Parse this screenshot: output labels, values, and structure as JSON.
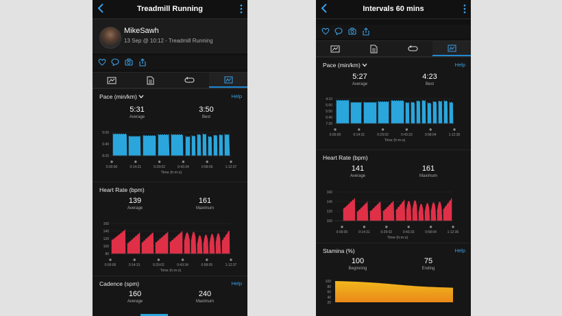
{
  "colors": {
    "pace": "#2aa6dd",
    "heart_rate": "#e03048",
    "stamina_top": "#f2b81d",
    "stamina_bottom": "#e9891a",
    "accent": "#1e8ad2"
  },
  "icons": [
    "back-chevron-icon",
    "more-vertical-icon",
    "heart-icon",
    "comment-icon",
    "camera-icon",
    "share-icon",
    "map-tab-icon",
    "details-tab-icon",
    "laps-tab-icon",
    "charts-tab-icon",
    "chevron-down-icon"
  ],
  "left": {
    "title": "Treadmill Running",
    "user": {
      "name": "MikeSawh",
      "subtitle": "13 Sep @ 10:12 - Treadmill Running"
    },
    "pace": {
      "label": "Pace (min/km)",
      "help": "Help",
      "avg": "5:31",
      "avg_label": "Average",
      "best": "3:50",
      "best_label": "Best",
      "yticks": [
        "5:00",
        "6:40",
        "8:20"
      ],
      "xticks": [
        "0:00:00",
        "0:14:31",
        "0:29:02",
        "0:43:34",
        "0:58:05",
        "1:12:37"
      ],
      "xlabel": "Time (h:m:s)"
    },
    "hr": {
      "label": "Heart Rate (bpm)",
      "avg": "139",
      "avg_label": "Average",
      "max": "161",
      "max_label": "Maximum",
      "yticks": [
        "160",
        "140",
        "120",
        "100",
        "80"
      ],
      "xticks": [
        "0:00:00",
        "0:14:31",
        "0:29:02",
        "0:43:34",
        "0:58:05",
        "1:12:37"
      ],
      "xlabel": "Time (h:m:s)"
    },
    "cadence": {
      "label": "Cadence (spm)",
      "help": "Help",
      "avg": "160",
      "avg_label": "Average",
      "max": "240",
      "max_label": "Maximum"
    }
  },
  "right": {
    "title": "Intervals 60 mins",
    "pace": {
      "label": "Pace (min/km)",
      "help": "Help",
      "avg": "5:27",
      "avg_label": "Average",
      "best": "4:23",
      "best_label": "Best",
      "yticks": [
        "4:10",
        "5:00",
        "5:50",
        "6:40",
        "7:30"
      ],
      "xticks": [
        "0:00:00",
        "0:14:31",
        "0:29:02",
        "0:43:33",
        "0:58:04",
        "1:12:36"
      ],
      "xlabel": "Time (h:m:s)"
    },
    "hr": {
      "label": "Heart Rate (bpm)",
      "avg": "141",
      "avg_label": "Average",
      "max": "161",
      "max_label": "Maximum",
      "yticks": [
        "160",
        "140",
        "120",
        "100"
      ],
      "xticks": [
        "0:00:00",
        "0:14:31",
        "0:29:02",
        "0:43:33",
        "0:58:04",
        "1:12:36"
      ],
      "xlabel": "Time (h:m:s)"
    },
    "stamina": {
      "label": "Stamina (%)",
      "help": "Help",
      "begin": "100",
      "begin_label": "Beginning",
      "end": "75",
      "end_label": "Ending",
      "yticks": [
        "100",
        "80",
        "60",
        "40",
        "20"
      ]
    }
  }
}
